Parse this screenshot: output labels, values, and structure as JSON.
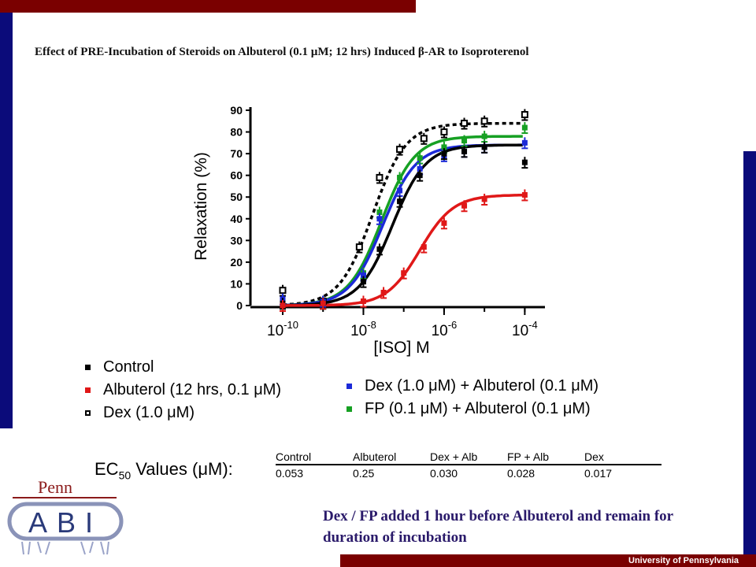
{
  "title": "Effect of PRE-Incubation of Steroids on Albuterol (0.1 µM; 12 hrs) Induced β-AR to Isoproterenol",
  "footer": "University of Pennsylvania",
  "logo": {
    "top": "Penn",
    "main": "ABI"
  },
  "chart_data": {
    "type": "line",
    "xlabel": "[ISO] M",
    "ylabel": "Relaxation (%)",
    "xscale": "log10",
    "xlim": [
      -10.8,
      -3.5
    ],
    "ylim": [
      0,
      90
    ],
    "yticks": [
      0,
      10,
      20,
      30,
      40,
      50,
      60,
      70,
      80,
      90
    ],
    "xticks": [
      -10,
      -8,
      -6,
      -4
    ],
    "xtick_labels": [
      {
        "base": "10",
        "exp": "-10"
      },
      {
        "base": "10",
        "exp": "-8"
      },
      {
        "base": "10",
        "exp": "-6"
      },
      {
        "base": "10",
        "exp": "-4"
      }
    ],
    "x": [
      -10,
      -9,
      -8.1,
      -8,
      -7.6,
      -7.2,
      -6.8,
      -6.5,
      -6.1,
      -5.5,
      -5,
      -4,
      -4
    ],
    "series": [
      {
        "name": "Dex (1.0 µM)",
        "color": "#000000",
        "marker": "open-square",
        "dashed": true,
        "max": 84,
        "logEC50": -7.77,
        "points": [
          [
            -10,
            7
          ],
          [
            -9,
            2
          ],
          [
            -8.1,
            27
          ],
          [
            -7.6,
            59
          ],
          [
            -7.1,
            72
          ],
          [
            -6.5,
            77
          ],
          [
            -6,
            80
          ],
          [
            -5.5,
            84
          ],
          [
            -5,
            85
          ],
          [
            -4,
            88
          ]
        ]
      },
      {
        "name": "FP (0.1 µM) + Albuterol (0.1 µM)",
        "color": "#16a023",
        "marker": "square",
        "dashed": false,
        "max": 78,
        "logEC50": -7.55,
        "points": [
          [
            -10,
            1
          ],
          [
            -9,
            1
          ],
          [
            -8,
            15
          ],
          [
            -7.6,
            43
          ],
          [
            -7.1,
            59
          ],
          [
            -6.6,
            68
          ],
          [
            -6,
            73
          ],
          [
            -5.5,
            76
          ],
          [
            -5,
            78
          ],
          [
            -4,
            82
          ]
        ]
      },
      {
        "name": "Dex (1.0 µM) + Albuterol (0.1 µM)",
        "color": "#1c2ad8",
        "marker": "square",
        "dashed": false,
        "max": 74,
        "logEC50": -7.52,
        "points": [
          [
            -10,
            3
          ],
          [
            -9,
            2
          ],
          [
            -8,
            14
          ],
          [
            -7.6,
            40
          ],
          [
            -7.1,
            53
          ],
          [
            -6.6,
            63
          ],
          [
            -6,
            69
          ],
          [
            -5.5,
            71
          ],
          [
            -5,
            73
          ],
          [
            -4,
            75
          ]
        ]
      },
      {
        "name": "Control",
        "color": "#000000",
        "marker": "square",
        "dashed": false,
        "max": 74,
        "logEC50": -7.28,
        "points": [
          [
            -10,
            1
          ],
          [
            -9,
            1
          ],
          [
            -8,
            11
          ],
          [
            -7.6,
            26
          ],
          [
            -7.1,
            48
          ],
          [
            -6.6,
            60
          ],
          [
            -6,
            70
          ],
          [
            -5.5,
            71
          ],
          [
            -5,
            73
          ],
          [
            -4,
            66
          ]
        ]
      },
      {
        "name": "Albuterol (12 hrs, 0.1 µM)",
        "color": "#e01818",
        "marker": "square",
        "dashed": false,
        "max": 51,
        "logEC50": -6.6,
        "points": [
          [
            -10,
            0
          ],
          [
            -9,
            1
          ],
          [
            -8,
            2
          ],
          [
            -7.5,
            6
          ],
          [
            -7,
            15
          ],
          [
            -6.5,
            27
          ],
          [
            -6,
            38
          ],
          [
            -5.5,
            46
          ],
          [
            -5,
            49
          ],
          [
            -4,
            51
          ]
        ]
      }
    ]
  },
  "legend": {
    "left": [
      {
        "label": "Control",
        "color": "#000000",
        "marker": "square"
      },
      {
        "label": "Albuterol (12 hrs, 0.1 μM)",
        "color": "#e01818",
        "marker": "square"
      },
      {
        "label": "Dex (1.0 μM)",
        "color": "#000000",
        "marker": "open-square"
      }
    ],
    "right": [
      {
        "label": "Dex (1.0 μM) + Albuterol (0.1 μM)",
        "color": "#1c2ad8",
        "marker": "square"
      },
      {
        "label": "FP (0.1 μM) + Albuterol (0.1 μM)",
        "color": "#16a023",
        "marker": "square"
      }
    ]
  },
  "ec50": {
    "label_pre": "EC",
    "label_sub": "50",
    "label_post": " Values (μM):",
    "headers": [
      "Control",
      "Albuterol",
      "Dex + Alb",
      "FP + Alb",
      "Dex"
    ],
    "values": [
      "0.053",
      "0.25",
      "0.030",
      "0.028",
      "0.017"
    ]
  },
  "note": "Dex / FP added 1 hour before Albuterol and remain for duration of incubation"
}
